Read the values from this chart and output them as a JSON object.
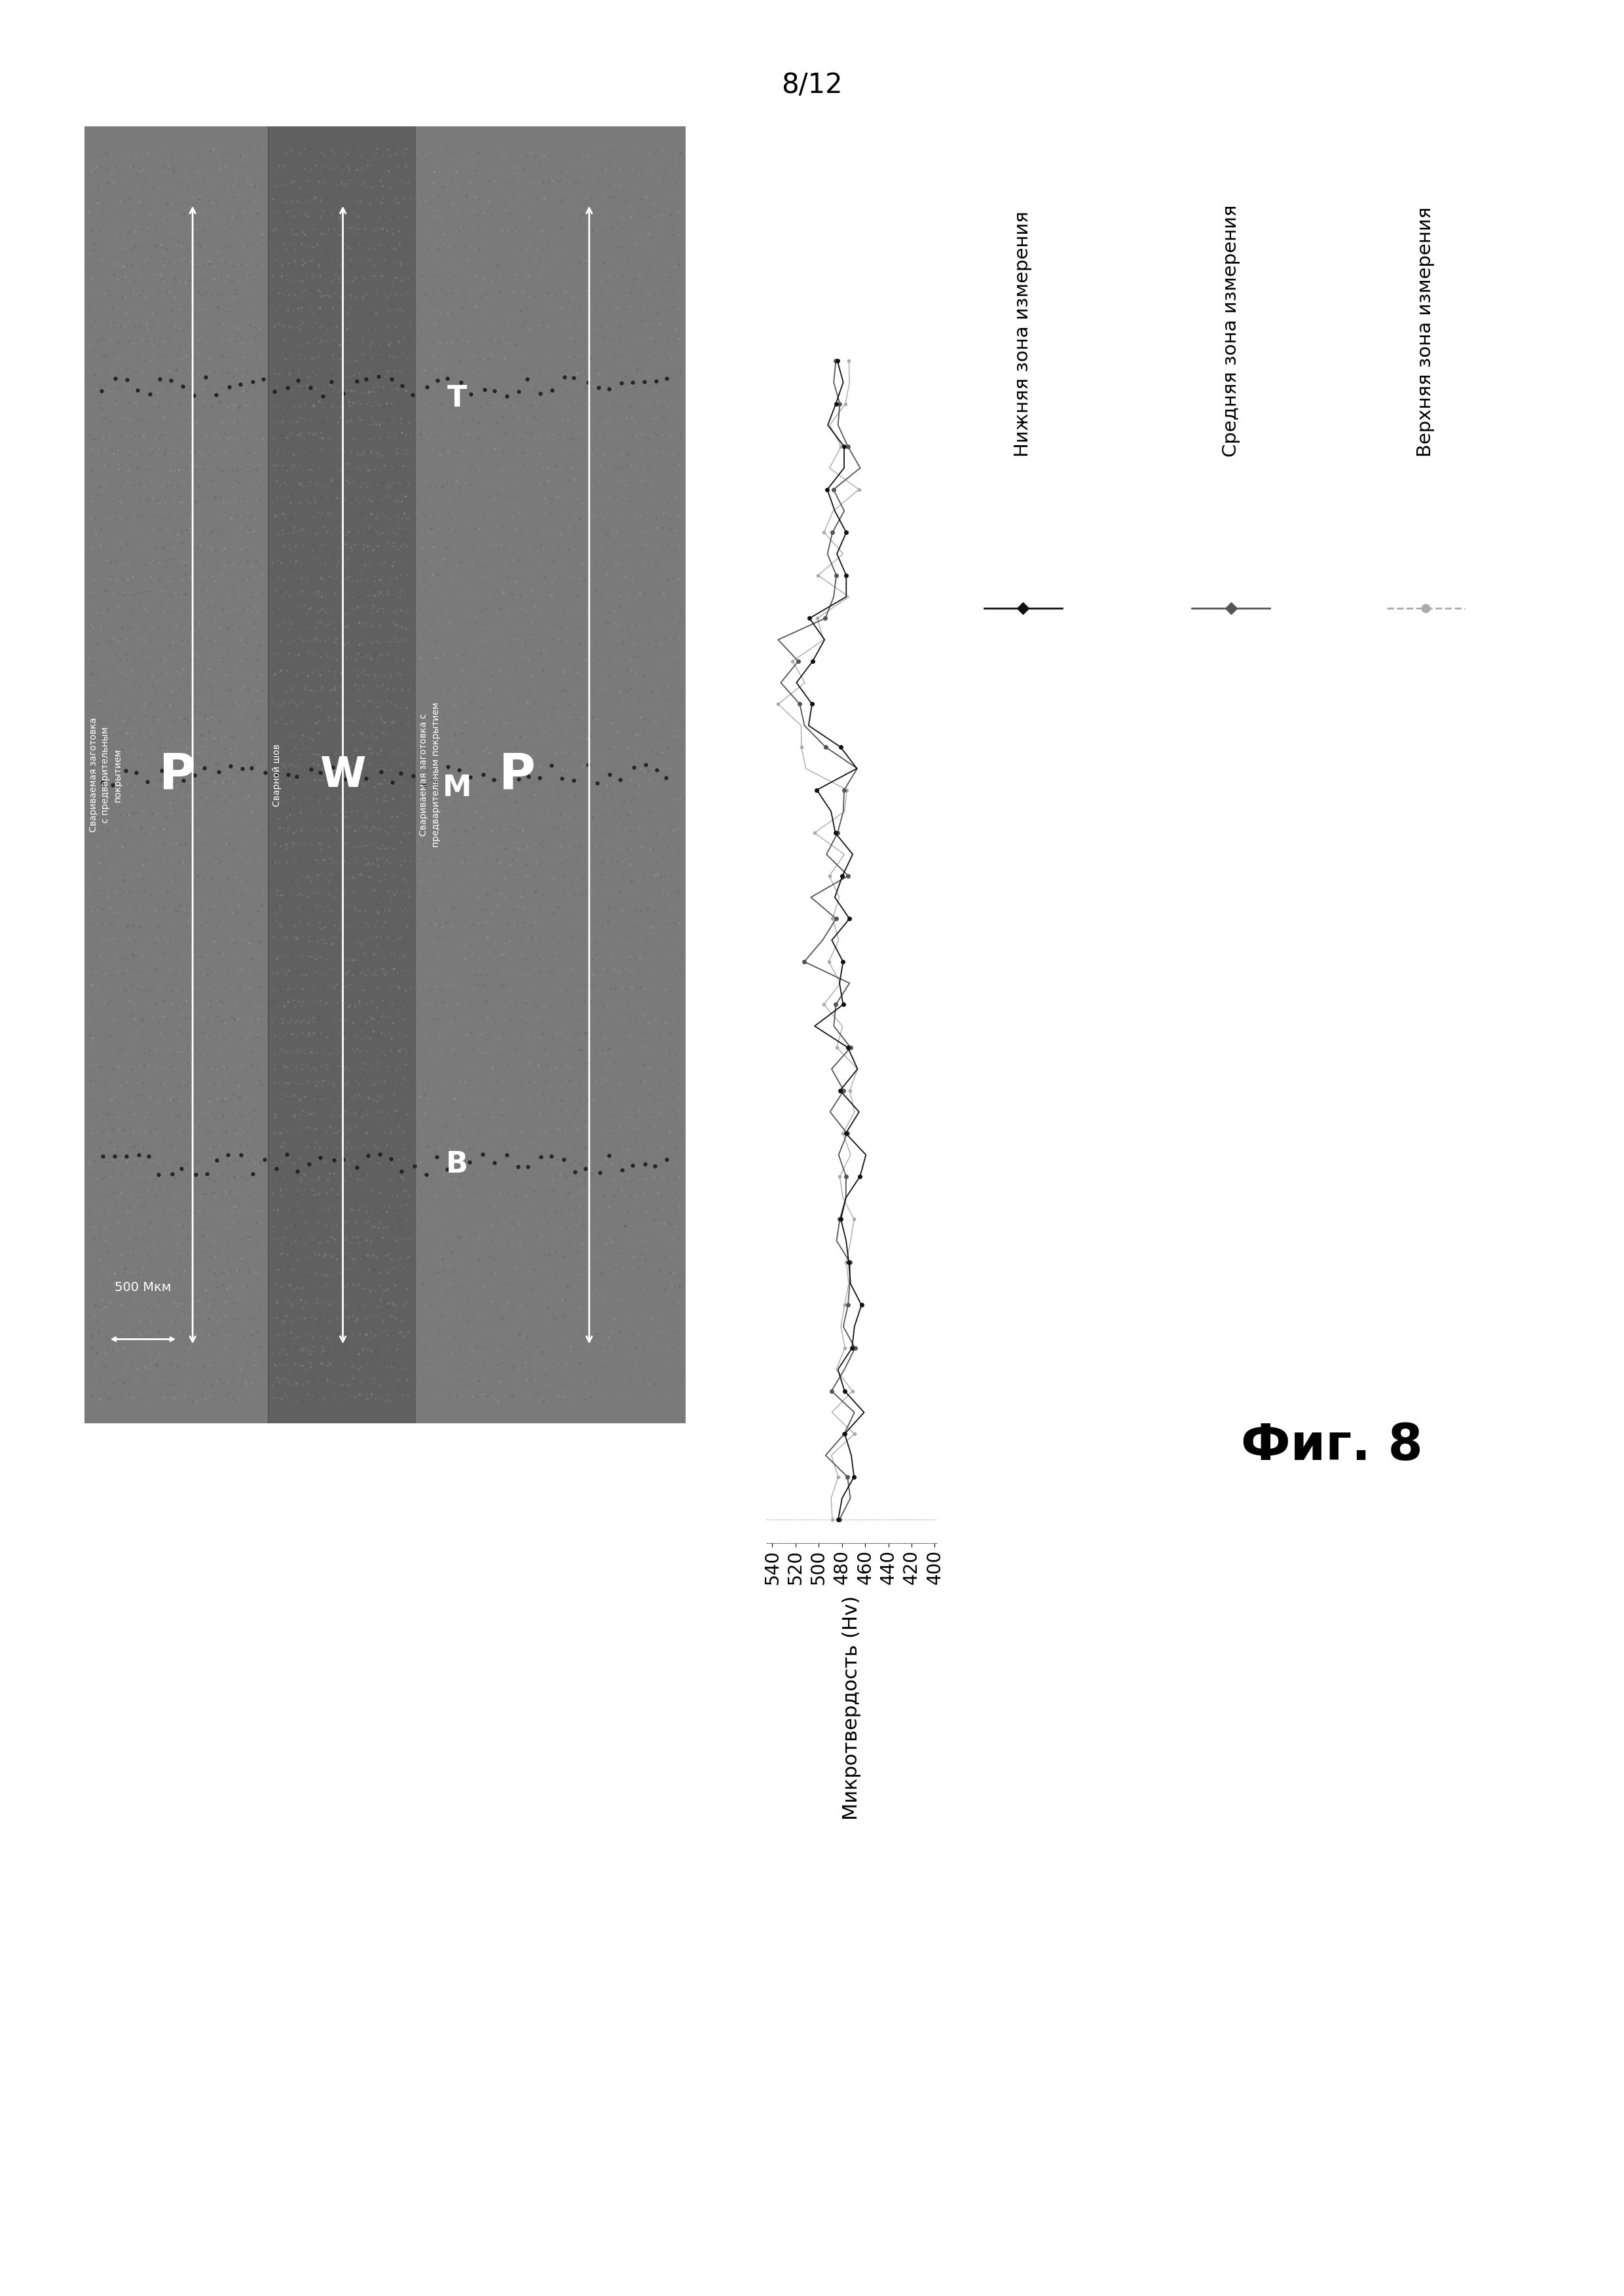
{
  "page_number": "8/12",
  "fig_label": "Фиг. 8",
  "ylabel": "Микротвердость (Hv)",
  "xlim": [
    400,
    545
  ],
  "xticks": [
    540,
    520,
    500,
    480,
    460,
    440,
    420,
    400
  ],
  "legend_labels": [
    "Нижняя зона измерения",
    "Средняя зона измерения",
    "Верхняя зона измерения"
  ],
  "legend_colors": [
    "#111111",
    "#555555",
    "#aaaaaa"
  ],
  "background_color": "#ffffff",
  "label_P_left": "P",
  "label_W": "W",
  "label_P_right": "P",
  "label_T": "T",
  "label_M": "M",
  "label_B": "B",
  "scale_bar": "500 Мкм",
  "zone_label_left": "Свариваемая заготовка\nс предварительным\nпокрытием",
  "zone_label_weld": "Сварной шов",
  "zone_label_right": "Свариваемая заготовка с\nпредварительным покрытием"
}
